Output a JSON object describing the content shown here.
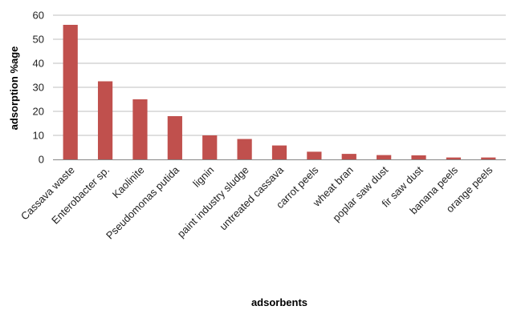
{
  "chart_data": {
    "type": "bar",
    "title": "",
    "xlabel": "adsorbents",
    "ylabel": "adsorption %age",
    "ylim": [
      0,
      60
    ],
    "yticks": [
      0,
      10,
      20,
      30,
      40,
      50,
      60
    ],
    "grid": true,
    "legend": "none",
    "bar_color": "#C0504D",
    "categories": [
      "Cassava waste",
      "Enterobacter sp.",
      "Kaolinite",
      "Pseudomonas putida",
      "lignin",
      "paint industry sludge",
      "untreated cassava",
      "carrot peels",
      "wheat bran",
      "poplar saw dust",
      "fir saw dust",
      "banana peels",
      "orange peels"
    ],
    "values": [
      56,
      32.5,
      25,
      18,
      10,
      8.5,
      5.8,
      3.2,
      2.3,
      1.8,
      1.7,
      0.8,
      0.8
    ]
  }
}
